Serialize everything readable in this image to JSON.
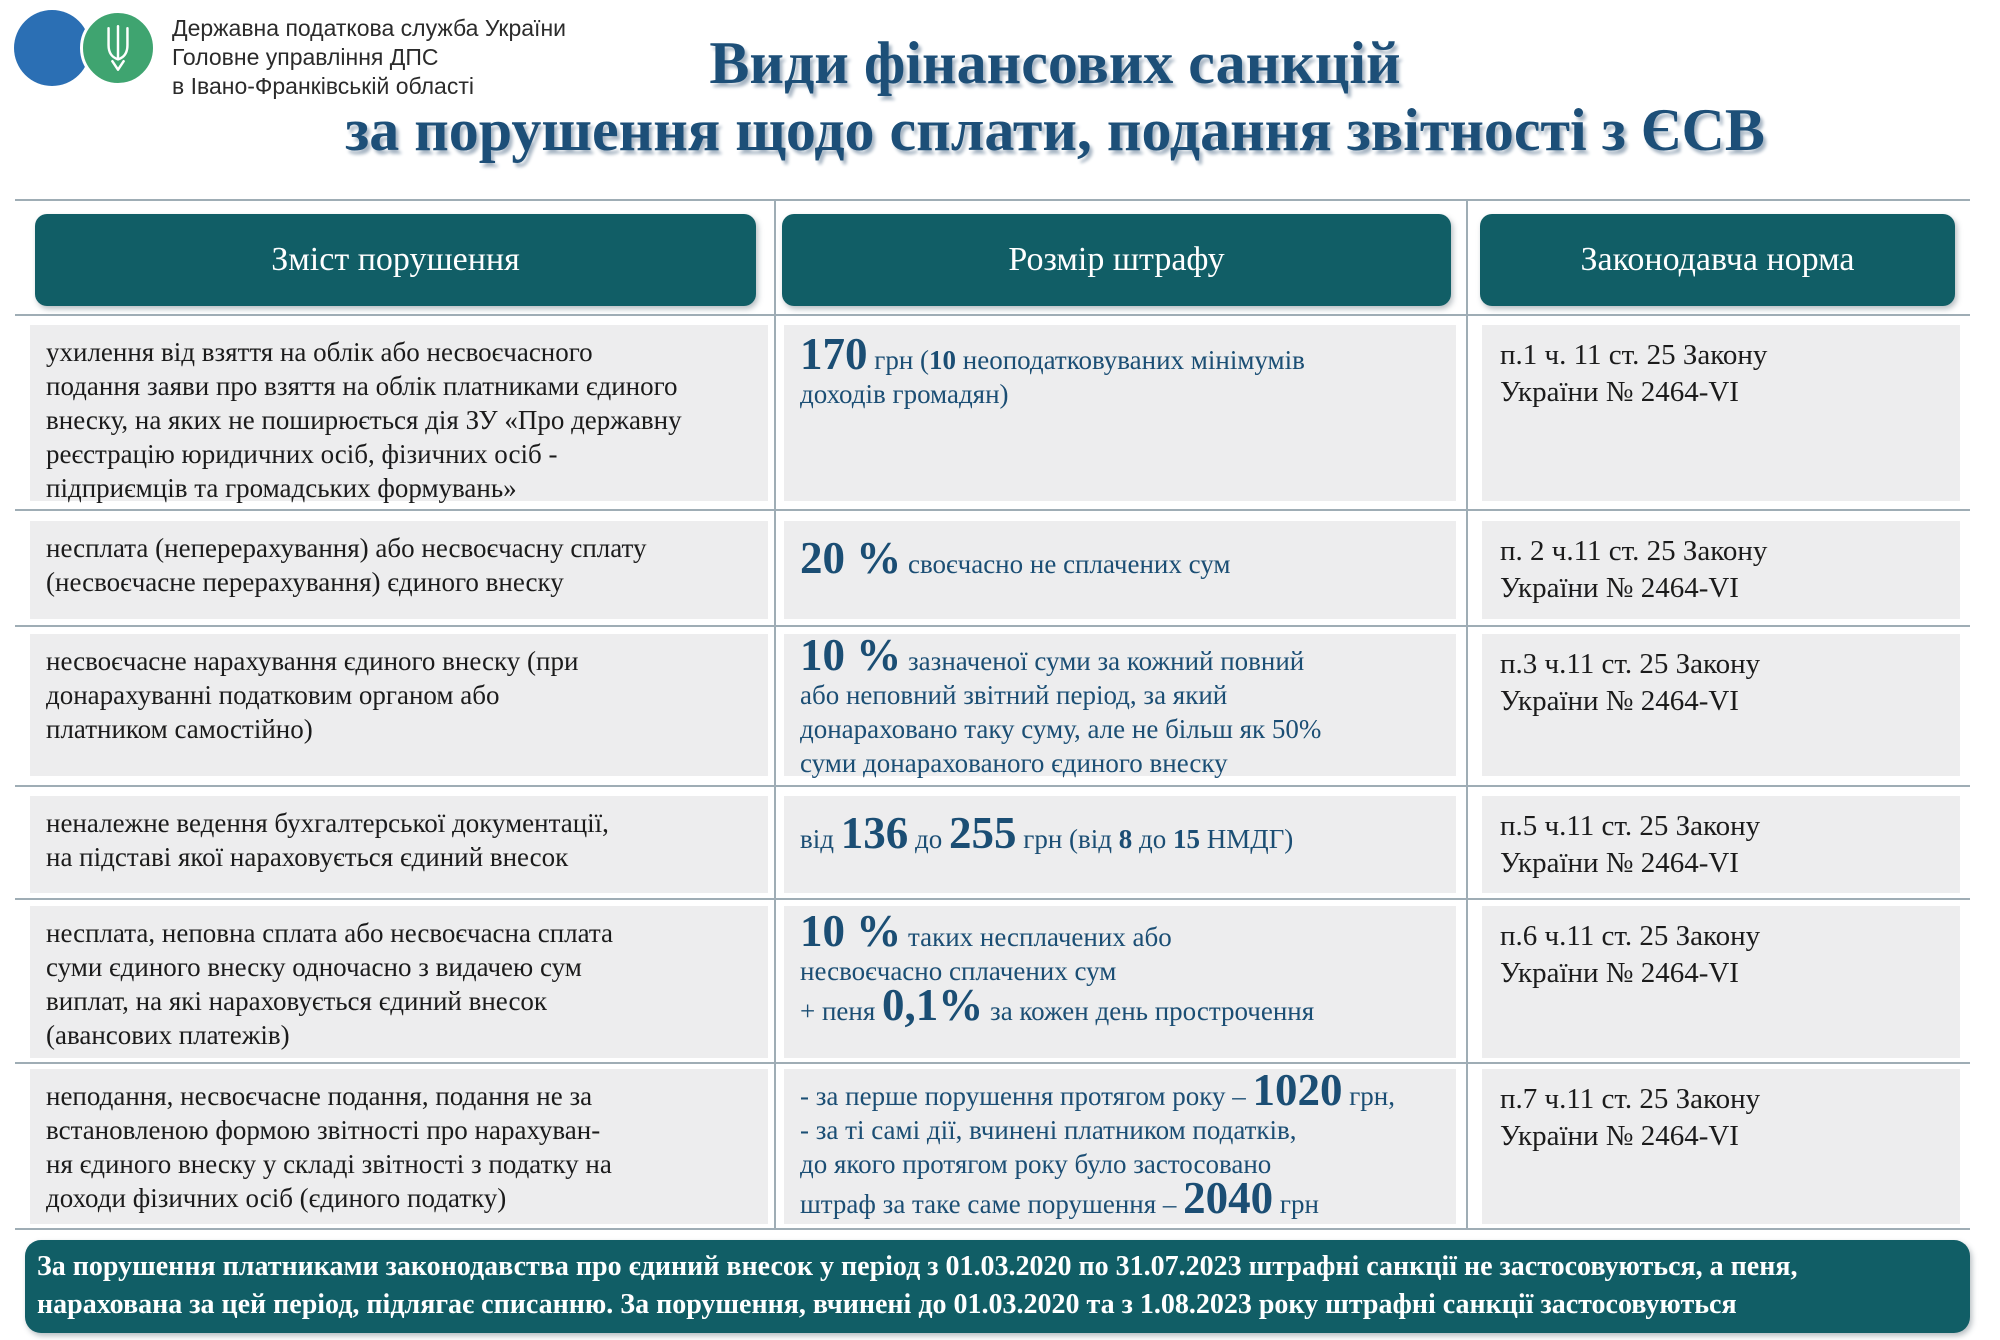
{
  "header": {
    "org_lines": [
      "Державна податкова служба України",
      "Головне управління ДПС",
      "в Івано-Франківській області"
    ],
    "title_line1": "Види фінансових санкцій",
    "title_line2": "за порушення щодо сплати, подання звітності з ЄСВ",
    "logo_emblem": "ukraine-trident"
  },
  "table": {
    "headers": [
      "Зміст порушення",
      "Розмір штрафу",
      "Законодавча норма"
    ],
    "rows": [
      {
        "violation": "ухилення від взяття на облік або несвоєчасного\nподання заяви про взяття на облік платниками єдиного\nвнеску, на яких не поширюється дія ЗУ «Про державну\nреєстрацію юридичних осіб, фізичних осіб -\nпідприємців та громадських формувань»",
        "fine": [
          {
            "text": "170",
            "style": "big"
          },
          {
            "text": " грн (",
            "style": "normal"
          },
          {
            "text": "10",
            "style": "bold"
          },
          {
            "text": " неоподатковуваних мінімумів\nдоходів громадян)",
            "style": "normal"
          }
        ],
        "norm": "п.1 ч. 11 ст. 25 Закону\nУкраїни № 2464-VI"
      },
      {
        "violation": "несплата (неперерахування) або несвоєчасну сплату\n(несвоєчасне перерахування) єдиного внеску",
        "fine": [
          {
            "text": "20 %",
            "style": "big"
          },
          {
            "text": " своєчасно не сплачених сум",
            "style": "normal"
          }
        ],
        "norm": "п. 2 ч.11 ст. 25 Закону\nУкраїни № 2464-VI"
      },
      {
        "violation": "несвоєчасне нарахування єдиного внеску (при\nдонарахуванні податковим органом або\nплатником самостійно)",
        "fine": [
          {
            "text": "10 %",
            "style": "big"
          },
          {
            "text": " зазначеної суми за кожний повний\nабо неповний звітний період, за який\nдонараховано таку суму, але не більш як 50%\nсуми донарахованого єдиного внеску",
            "style": "normal"
          }
        ],
        "norm": "п.3 ч.11 ст. 25 Закону\nУкраїни № 2464-VI"
      },
      {
        "violation": "неналежне ведення бухгалтерської документації,\nна підставі якої нараховується єдиний внесок",
        "fine": [
          {
            "text": "від ",
            "style": "normal"
          },
          {
            "text": "136",
            "style": "big"
          },
          {
            "text": " до ",
            "style": "normal"
          },
          {
            "text": "255",
            "style": "big"
          },
          {
            "text": " грн (від ",
            "style": "normal"
          },
          {
            "text": "8",
            "style": "bold"
          },
          {
            "text": " до ",
            "style": "normal"
          },
          {
            "text": "15",
            "style": "bold"
          },
          {
            "text": " НМДГ)",
            "style": "normal"
          }
        ],
        "norm": "п.5 ч.11 ст. 25 Закону\nУкраїни № 2464-VI"
      },
      {
        "violation": "несплата, неповна сплата або несвоєчасна сплата\nсуми єдиного внеску одночасно з видачею сум\nвиплат, на які нараховується єдиний внесок\n(авансових платежів)",
        "fine": [
          {
            "text": "10 %",
            "style": "big"
          },
          {
            "text": " таких несплачених або\nнесвоєчасно сплачених сум\n+ пеня ",
            "style": "normal"
          },
          {
            "text": "0,1%",
            "style": "big"
          },
          {
            "text": " за кожен день прострочення",
            "style": "normal"
          }
        ],
        "norm": "п.6 ч.11 ст. 25 Закону\nУкраїни № 2464-VI"
      },
      {
        "violation": "неподання, несвоєчасне подання, подання не за\nвстановленою формою звітності про нарахуван-\nня єдиного внеску у складі звітності з податку на\nдоходи фізичних осіб (єдиного податку)",
        "fine": [
          {
            "text": "- за перше порушення протягом року – ",
            "style": "normal"
          },
          {
            "text": "1020",
            "style": "big"
          },
          {
            "text": " грн,\n- за ті самі дії, вчинені платником податків,\nдо якого протягом року було застосовано\nштраф за таке саме порушення – ",
            "style": "normal"
          },
          {
            "text": "2040",
            "style": "big"
          },
          {
            "text": " грн",
            "style": "normal"
          }
        ],
        "norm": "п.7 ч.11 ст. 25 Закону\nУкраїни № 2464-VI"
      }
    ]
  },
  "footer": {
    "text": "За порушення платниками законодавства про єдиний внесок у період з 01.03.2020 по 31.07.2023 штрафні санкції не застосовуються, а пеня,\nнарахована за цей період, підлягає списанню. За порушення, вчинені до 01.03.2020 та з 1.08.2023 року штрафні санкції застосовуються"
  },
  "colors": {
    "teal": "#115e66",
    "title_blue": "#1d4f78",
    "fine_blue": "#1b4e74",
    "cell_bg": "#ededee",
    "logo_blue": "#2b6fb4",
    "logo_green": "#3fa470",
    "line_gray": "#9fadb5"
  }
}
